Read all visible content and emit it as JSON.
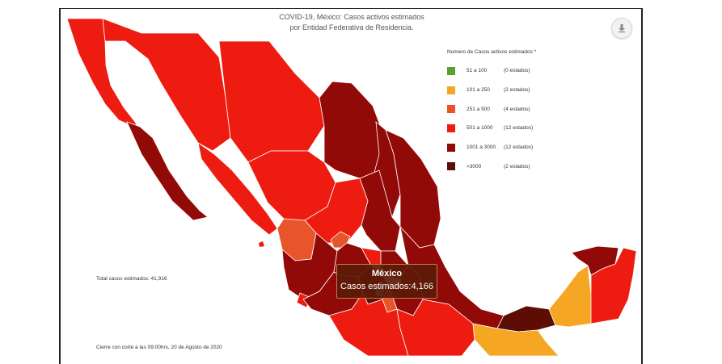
{
  "title_line1": "COVID-19, México: Casos activos estimados",
  "title_line2": "por Entidad Federativa de Residencia.",
  "download_icon": "download-icon",
  "legend": {
    "title": "Numero de Casos activos estimados *",
    "items": [
      {
        "range": "51 a  100",
        "count": "(0 estados)",
        "color": "#5aa02c"
      },
      {
        "range": "101 a  250",
        "count": "(2 estados)",
        "color": "#f5a623"
      },
      {
        "range": "251 a  500",
        "count": "(4 estados)",
        "color": "#e8552a"
      },
      {
        "range": "501 a 1000",
        "count": "(12 estados)",
        "color": "#ee1c10"
      },
      {
        "range": "1001 a 3000",
        "count": "(12 estados)",
        "color": "#920a08"
      },
      {
        "range": ">3000",
        "count": "(2 estados)",
        "color": "#5e0d04"
      }
    ]
  },
  "total": "Total casos estimados: 41,916",
  "cierre": "Cierre con corte a las 09:00hrs, 20 de Agosto de 2020",
  "tooltip": {
    "state": "México",
    "label": "Casos estimados:",
    "value": "4,166"
  }
}
